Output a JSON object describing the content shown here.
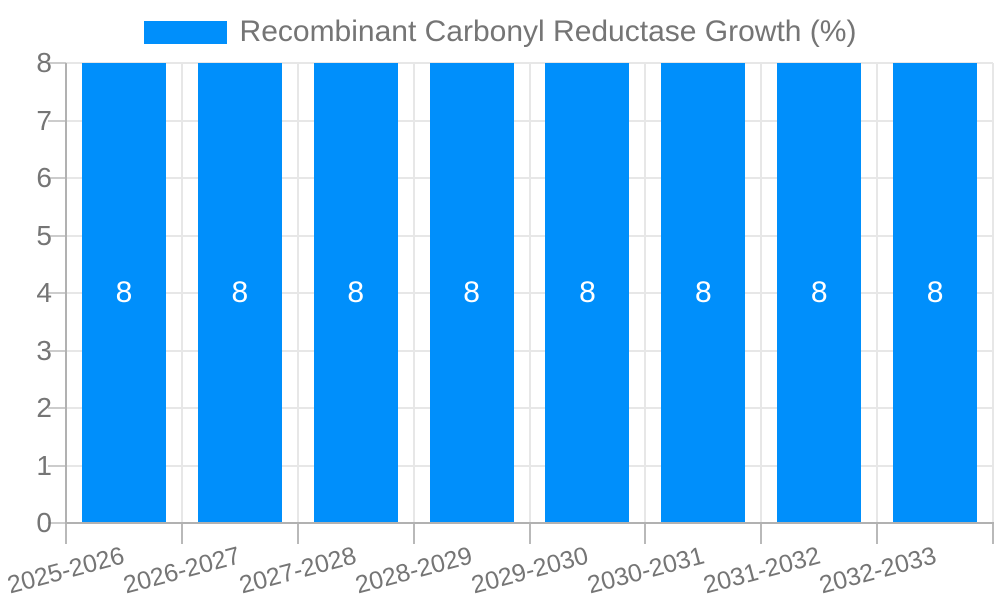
{
  "legend": {
    "label": "Recombinant Carbonyl Reductase Growth (%)"
  },
  "chart_data": {
    "type": "bar",
    "title": "Recombinant Carbonyl Reductase Growth (%)",
    "categories": [
      "2025-2026",
      "2026-2027",
      "2027-2028",
      "2028-2029",
      "2029-2030",
      "2030-2031",
      "2031-2032",
      "2032-2033"
    ],
    "series": [
      {
        "name": "Recombinant Carbonyl Reductase Growth (%)",
        "values": [
          8,
          8,
          8,
          8,
          8,
          8,
          8,
          8
        ]
      }
    ],
    "data_labels": [
      "8",
      "8",
      "8",
      "8",
      "8",
      "8",
      "8",
      "8"
    ],
    "y_ticks": [
      "0",
      "1",
      "2",
      "3",
      "4",
      "5",
      "6",
      "7",
      "8"
    ],
    "ylim": [
      0,
      8
    ],
    "xlabel": "",
    "ylabel": "",
    "grid": "on",
    "legend_position": "top",
    "x_label_rotation_deg": -15
  },
  "colors": {
    "bar": "#008ffb",
    "axis_text": "#757575",
    "value_text": "#ffffff",
    "grid_line": "#e7e7e7",
    "axis_line": "#b1b1b1",
    "y_tick": "#cccccc",
    "x_tick": "#b9b9b9",
    "background": "#ffffff"
  }
}
